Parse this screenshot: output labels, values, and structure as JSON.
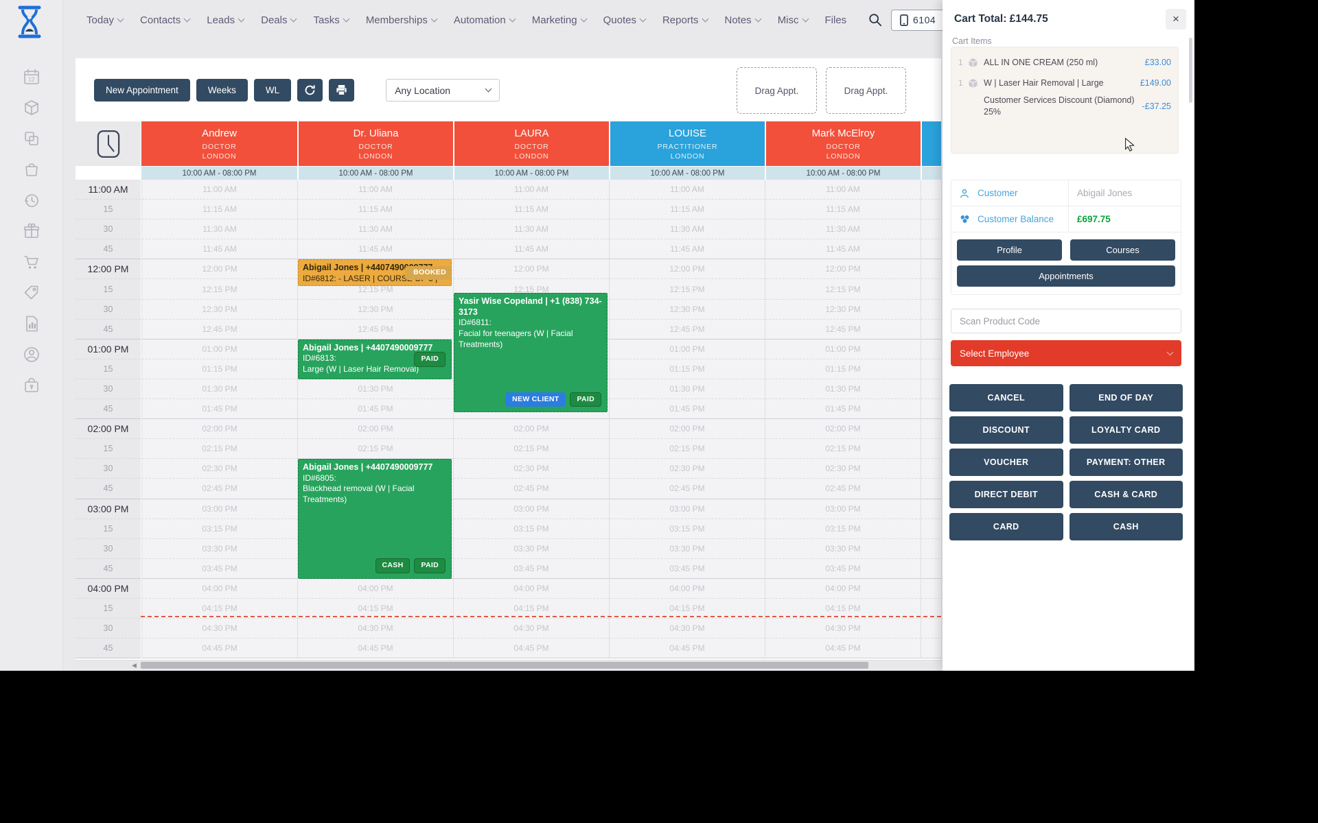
{
  "colors": {
    "navy": "#324a62",
    "column_red": "#f2503b",
    "column_blue": "#2aa2db",
    "hours_strip": "#cfe3ea",
    "appt_green": "#28a35d",
    "appt_orange": "#ecaa3f",
    "badge_paid": "#1d8c41",
    "badge_new_client": "#2b7de0",
    "badge_booked": "#d8a74c",
    "employee_red": "#e23b29",
    "price_blue": "#3d8fd6",
    "balance_green": "#0aa23e"
  },
  "nav": {
    "items": [
      {
        "label": "Today",
        "chevron": true
      },
      {
        "label": "Contacts",
        "chevron": true
      },
      {
        "label": "Leads",
        "chevron": true
      },
      {
        "label": "Deals",
        "chevron": true
      },
      {
        "label": "Tasks",
        "chevron": true
      },
      {
        "label": "Memberships",
        "chevron": true
      },
      {
        "label": "Automation",
        "chevron": true
      },
      {
        "label": "Marketing",
        "chevron": true
      },
      {
        "label": "Quotes",
        "chevron": true
      },
      {
        "label": "Reports",
        "chevron": true
      },
      {
        "label": "Notes",
        "chevron": true
      },
      {
        "label": "Misc",
        "chevron": true
      },
      {
        "label": "Files",
        "chevron": false
      }
    ],
    "device_number": "6104"
  },
  "sidebar": {
    "icons": [
      {
        "name": "calendar-icon"
      },
      {
        "name": "package-icon"
      },
      {
        "name": "copy-icon"
      },
      {
        "name": "bag-icon"
      },
      {
        "name": "history-icon"
      },
      {
        "name": "gift-icon"
      },
      {
        "name": "cart-icon"
      },
      {
        "name": "price-tag-icon"
      },
      {
        "name": "report-icon"
      },
      {
        "name": "account-icon"
      },
      {
        "name": "case-lock-icon"
      }
    ]
  },
  "toolbar": {
    "new_appointment": "New Appointment",
    "weeks": "Weeks",
    "wl": "WL",
    "location_value": "Any Location",
    "drag_slots": [
      "Drag Appt.",
      "Drag Appt."
    ]
  },
  "calendar": {
    "columns": [
      {
        "name": "Andrew",
        "role": "DOCTOR",
        "location": "LONDON",
        "color": "red",
        "hours": "10:00 AM - 08:00 PM"
      },
      {
        "name": "Dr. Uliana",
        "role": "DOCTOR",
        "location": "LONDON",
        "color": "red",
        "hours": "10:00 AM - 08:00 PM"
      },
      {
        "name": "LAURA",
        "role": "DOCTOR",
        "location": "LONDON",
        "color": "red",
        "hours": "10:00 AM - 08:00 PM"
      },
      {
        "name": "LOUISE",
        "role": "PRACTITIONER",
        "location": "LONDON",
        "color": "blue",
        "hours": "10:00 AM - 08:00 PM"
      },
      {
        "name": "Mark McElroy",
        "role": "DOCTOR",
        "location": "LONDON",
        "color": "red",
        "hours": "10:00 AM - 08:00 PM"
      },
      {
        "name": "",
        "role": "",
        "location": "",
        "color": "blue",
        "hours": "10:00 AM - 08:00 PM"
      }
    ],
    "time_rows": [
      {
        "label": "11:00 AM",
        "major": true,
        "cell": "11:00 AM"
      },
      {
        "label": "15",
        "major": false,
        "cell": "11:15 AM"
      },
      {
        "label": "30",
        "major": false,
        "cell": "11:30 AM"
      },
      {
        "label": "45",
        "major": false,
        "cell": "11:45 AM"
      },
      {
        "label": "12:00 PM",
        "major": true,
        "cell": "12:00 PM"
      },
      {
        "label": "15",
        "major": false,
        "cell": "12:15 PM"
      },
      {
        "label": "30",
        "major": false,
        "cell": "12:30 PM"
      },
      {
        "label": "45",
        "major": false,
        "cell": "12:45 PM"
      },
      {
        "label": "01:00 PM",
        "major": true,
        "cell": "01:00 PM"
      },
      {
        "label": "15",
        "major": false,
        "cell": "01:15 PM"
      },
      {
        "label": "30",
        "major": false,
        "cell": "01:30 PM"
      },
      {
        "label": "45",
        "major": false,
        "cell": "01:45 PM"
      },
      {
        "label": "02:00 PM",
        "major": true,
        "cell": "02:00 PM"
      },
      {
        "label": "15",
        "major": false,
        "cell": "02:15 PM"
      },
      {
        "label": "30",
        "major": false,
        "cell": "02:30 PM"
      },
      {
        "label": "45",
        "major": false,
        "cell": "02:45 PM"
      },
      {
        "label": "03:00 PM",
        "major": true,
        "cell": "03:00 PM"
      },
      {
        "label": "15",
        "major": false,
        "cell": "03:15 PM"
      },
      {
        "label": "30",
        "major": false,
        "cell": "03:30 PM"
      },
      {
        "label": "45",
        "major": false,
        "cell": "03:45 PM"
      },
      {
        "label": "04:00 PM",
        "major": true,
        "cell": "04:00 PM"
      },
      {
        "label": "15",
        "major": false,
        "cell": "04:15 PM"
      },
      {
        "label": "30",
        "major": false,
        "cell": "04:30 PM"
      },
      {
        "label": "45",
        "major": false,
        "cell": "04:45 PM"
      }
    ],
    "appointments": [
      {
        "column": 1,
        "start": "12:00 PM",
        "end": "12:20 PM",
        "color": "orange",
        "name": "Abigail Jones | +4407490009777",
        "details": "ID#6812: - LASER | COURSE OF 3 |",
        "service": "",
        "badges": [
          {
            "text": "BOOKED",
            "kind": "booked"
          }
        ],
        "badge_pos": "tr"
      },
      {
        "column": 2,
        "start": "12:25 PM",
        "end": "01:55 PM",
        "color": "green",
        "name": "Yasir Wise Copeland | +1 (838) 734-3173",
        "details": "ID#6811:",
        "service": "Facial for teenagers (W | Facial Treatments)",
        "badges": [
          {
            "text": "NEW CLIENT",
            "kind": "new"
          },
          {
            "text": "PAID",
            "kind": "paid"
          }
        ],
        "badge_pos": "br"
      },
      {
        "column": 1,
        "start": "01:00 PM",
        "end": "01:30 PM",
        "color": "green",
        "name": "Abigail Jones | +4407490009777",
        "details": "ID#6813:",
        "service": "Large (W | Laser Hair Removal)",
        "badges": [
          {
            "text": "PAID",
            "kind": "paid"
          }
        ],
        "badge_pos": "mr"
      },
      {
        "column": 1,
        "start": "02:30 PM",
        "end": "04:00 PM",
        "color": "green",
        "name": "Abigail Jones | +4407490009777",
        "details": "ID#6805:",
        "service": "Blackhead removal (W | Facial Treatments)",
        "badges": [
          {
            "text": "CASH",
            "kind": "paid"
          },
          {
            "text": "PAID",
            "kind": "paid"
          }
        ],
        "badge_pos": "br"
      }
    ]
  },
  "cart": {
    "title": "Cart Total: £144.75",
    "close_label": "×",
    "items_label": "Cart Items",
    "items": [
      {
        "qty": "1",
        "icon": "package-icon",
        "name": "ALL IN ONE CREAM (250 ml)",
        "price": "£33.00"
      },
      {
        "qty": "1",
        "icon": "package-icon",
        "name": "W | Laser Hair Removal | Large",
        "price": "£149.00"
      },
      {
        "qty": "",
        "icon": "",
        "name": "Customer Services Discount (Diamond) 25%",
        "price": "-£37.25"
      }
    ],
    "customer": {
      "label": "Customer",
      "value": "Abigail Jones",
      "balance_label": "Customer Balance",
      "balance_value": "£697.75"
    },
    "action_buttons": [
      "Profile",
      "Courses"
    ],
    "action_full_button": "Appointments",
    "scan_placeholder": "Scan Product Code",
    "select_employee": "Select Employee",
    "payment_buttons": [
      "CANCEL",
      "END OF DAY",
      "DISCOUNT",
      "LOYALTY CARD",
      "VOUCHER",
      "PAYMENT: OTHER",
      "DIRECT DEBIT",
      "CASH & CARD",
      "CARD",
      "CASH"
    ]
  }
}
